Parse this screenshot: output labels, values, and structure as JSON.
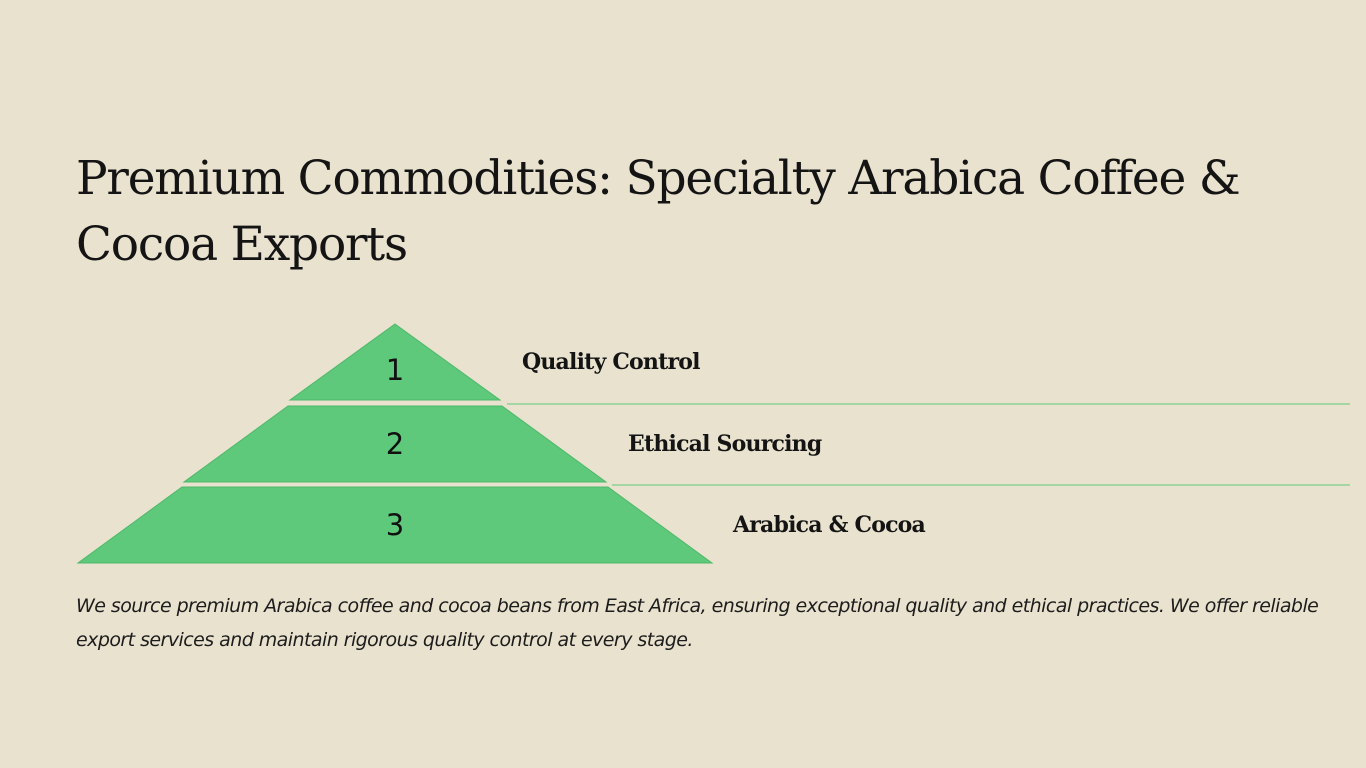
{
  "slide": {
    "title": "Premium Commodities: Specialty Arabica Coffee & Cocoa Exports",
    "tiers": [
      {
        "number": "1",
        "label": "Quality Control"
      },
      {
        "number": "2",
        "label": "Ethical Sourcing"
      },
      {
        "number": "3",
        "label": "Arabica & Cocoa"
      }
    ],
    "description": "We source premium Arabica coffee and cocoa beans from East Africa, ensuring exceptional quality and ethical practices. We offer reliable export services and maintain rigorous quality control at every stage."
  },
  "colors": {
    "background": "#e9e2cf",
    "tier_fill": "#5ec97a",
    "tier_stroke": "#4fb86b",
    "divider": "#5ec97a",
    "text": "#141414"
  }
}
